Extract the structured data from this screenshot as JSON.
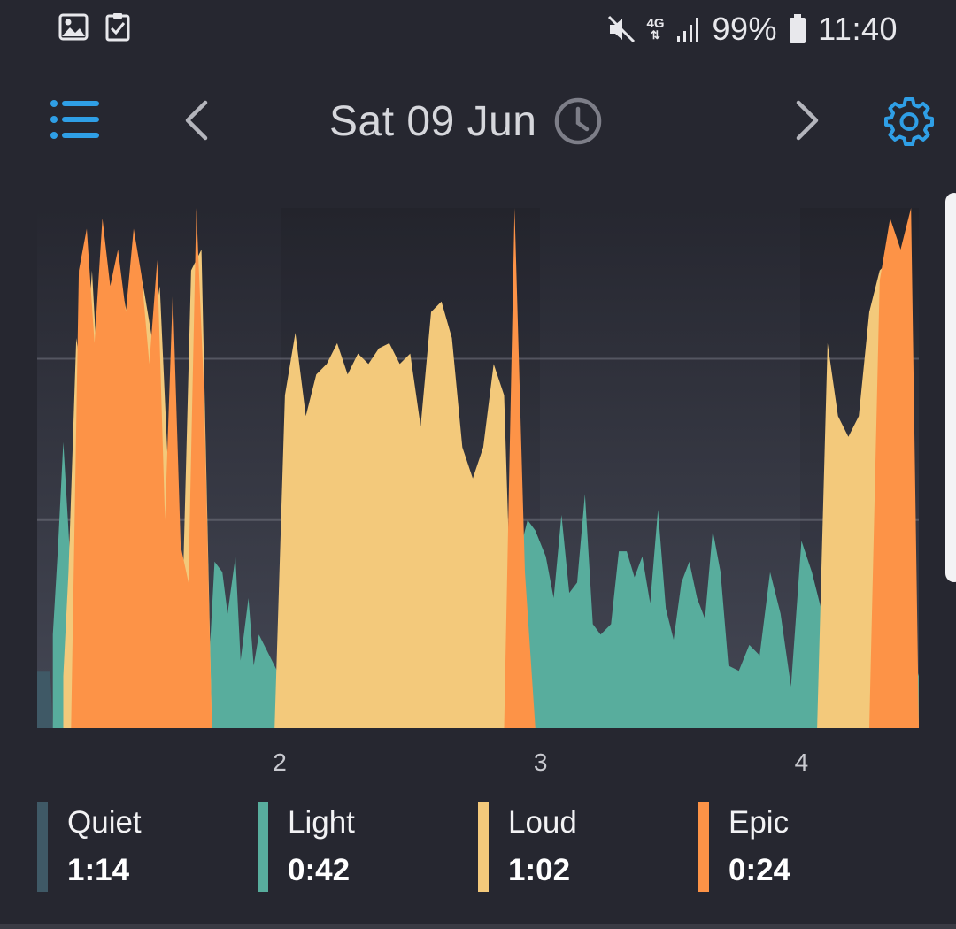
{
  "status_bar": {
    "icons_left": [
      "image-notification-icon",
      "checklist-notification-icon"
    ],
    "network_label": "4G",
    "battery_text": "99%",
    "time": "11:40"
  },
  "header": {
    "date": "Sat 09 Jun",
    "icons": {
      "menu": "menu-list-icon",
      "prev": "chevron-left-icon",
      "next": "chevron-right-icon",
      "clock": "clock-icon",
      "settings": "gear-icon"
    }
  },
  "colors": {
    "background": "#262730",
    "accent": "#2f9fe6",
    "quiet": "#3f5966",
    "light": "#58ad9d",
    "loud": "#f3c97b",
    "epic": "#fd9347"
  },
  "legend": [
    {
      "name": "Quiet",
      "value": "1:14",
      "color": "#3f5966"
    },
    {
      "name": "Light",
      "value": "0:42",
      "color": "#58ad9d"
    },
    {
      "name": "Loud",
      "value": "1:02",
      "color": "#f3c97b"
    },
    {
      "name": "Epic",
      "value": "0:24",
      "color": "#fd9347"
    }
  ],
  "chart_data": {
    "type": "area",
    "x_ticks": [
      "2",
      "3",
      "4"
    ],
    "x_tick_positions": [
      2,
      3,
      4
    ],
    "xlim": [
      1.07,
      4.45
    ],
    "ylim": [
      0,
      100
    ],
    "grid": true,
    "gridlines": [
      40,
      71
    ],
    "series": [
      {
        "name": "Quiet",
        "color": "#3f5966",
        "x": [
          1.07,
          1.12,
          1.13,
          1.22,
          1.3,
          1.4,
          1.5,
          1.6,
          1.7,
          1.8,
          1.9,
          2.0,
          2.1,
          2.2,
          2.3,
          2.4,
          2.5,
          2.6,
          2.7,
          2.8,
          2.9,
          3.0,
          3.1,
          3.2,
          3.3,
          3.4,
          3.5,
          3.6,
          3.7,
          3.8,
          3.9,
          3.93,
          4.0,
          4.1,
          4.2,
          4.3,
          4.45
        ],
        "y": [
          11,
          11,
          0,
          0,
          0,
          0,
          0,
          0,
          0,
          0,
          0,
          0,
          0,
          0,
          0,
          0,
          0,
          0,
          0,
          0,
          0,
          0,
          0,
          0,
          0,
          0,
          0,
          0,
          0,
          0,
          11,
          11,
          0,
          0,
          0,
          0,
          0
        ]
      },
      {
        "name": "Light",
        "color": "#58ad9d",
        "x": [
          1.13,
          1.15,
          1.17,
          1.19,
          1.21,
          1.25,
          1.32,
          1.4,
          1.48,
          1.56,
          1.64,
          1.72,
          1.75,
          1.78,
          1.8,
          1.83,
          1.85,
          1.88,
          1.9,
          1.92,
          1.95,
          2.0,
          2.1,
          2.2,
          2.3,
          2.4,
          2.5,
          2.6,
          2.7,
          2.78,
          2.8,
          2.82,
          2.85,
          2.88,
          2.92,
          2.95,
          2.98,
          3.02,
          3.05,
          3.08,
          3.11,
          3.14,
          3.17,
          3.2,
          3.23,
          3.27,
          3.3,
          3.33,
          3.36,
          3.39,
          3.42,
          3.45,
          3.48,
          3.51,
          3.54,
          3.57,
          3.6,
          3.63,
          3.66,
          3.69,
          3.72,
          3.76,
          3.8,
          3.84,
          3.88,
          3.92,
          3.96,
          4.0,
          4.04,
          4.08,
          4.12,
          4.16,
          4.2,
          4.24,
          4.28,
          4.32,
          4.36,
          4.4,
          4.45
        ],
        "y": [
          18,
          35,
          55,
          38,
          20,
          10,
          5,
          3,
          2,
          3,
          4,
          4,
          32,
          30,
          22,
          33,
          13,
          25,
          12,
          18,
          15,
          10,
          8,
          6,
          5,
          4,
          4,
          5,
          6,
          8,
          24,
          36,
          42,
          30,
          34,
          40,
          38,
          33,
          25,
          41,
          26,
          28,
          45,
          20,
          18,
          20,
          34,
          34,
          29,
          33,
          24,
          42,
          23,
          17,
          28,
          32,
          25,
          21,
          38,
          30,
          12,
          11,
          16,
          14,
          30,
          22,
          8,
          36,
          30,
          22,
          48,
          30,
          34,
          50,
          62,
          58,
          24,
          18,
          10
        ]
      },
      {
        "name": "Loud",
        "color": "#f3c97b",
        "x": [
          1.17,
          1.19,
          1.22,
          1.25,
          1.28,
          1.3,
          1.33,
          1.36,
          1.39,
          1.42,
          1.45,
          1.48,
          1.51,
          1.54,
          1.57,
          1.6,
          1.63,
          1.66,
          1.7,
          1.74,
          1.78,
          1.82,
          1.86,
          1.9,
          1.94,
          1.98,
          2.02,
          2.06,
          2.1,
          2.14,
          2.18,
          2.22,
          2.26,
          2.3,
          2.34,
          2.38,
          2.42,
          2.46,
          2.5,
          2.54,
          2.58,
          2.62,
          2.66,
          2.7,
          2.74,
          2.78,
          2.82,
          2.86,
          2.9,
          2.94,
          2.98,
          3.02,
          3.06,
          3.1,
          3.14,
          3.18,
          3.22,
          3.26,
          3.3,
          3.34,
          3.38,
          3.42,
          3.46,
          3.5,
          3.54,
          3.58,
          3.62,
          3.66,
          3.7,
          3.74,
          3.78,
          3.82,
          3.86,
          3.9,
          3.94,
          3.98,
          4.02,
          4.06,
          4.1,
          4.14,
          4.18,
          4.22,
          4.26,
          4.3,
          4.34,
          4.38,
          4.45
        ],
        "y": [
          10,
          30,
          75,
          64,
          88,
          70,
          90,
          80,
          86,
          78,
          92,
          84,
          75,
          85,
          52,
          40,
          30,
          88,
          92,
          0,
          0,
          0,
          0,
          0,
          0,
          0,
          64,
          76,
          60,
          68,
          70,
          74,
          68,
          72,
          70,
          73,
          74,
          70,
          72,
          58,
          80,
          82,
          75,
          54,
          48,
          54,
          70,
          64,
          0,
          0,
          0,
          0,
          0,
          0,
          0,
          0,
          0,
          0,
          0,
          0,
          0,
          0,
          0,
          0,
          0,
          0,
          0,
          0,
          0,
          0,
          0,
          0,
          0,
          0,
          0,
          0,
          0,
          0,
          74,
          60,
          56,
          60,
          80,
          88,
          90,
          92,
          0
        ]
      },
      {
        "name": "Epic",
        "color": "#fd9347",
        "x": [
          1.2,
          1.23,
          1.26,
          1.29,
          1.32,
          1.35,
          1.38,
          1.41,
          1.44,
          1.47,
          1.5,
          1.53,
          1.56,
          1.59,
          1.62,
          1.65,
          1.68,
          1.71,
          1.74,
          1.78,
          1.82,
          1.86,
          1.9,
          1.94,
          1.98,
          2.02,
          2.06,
          2.1,
          2.14,
          2.18,
          2.22,
          2.26,
          2.3,
          2.34,
          2.38,
          2.42,
          2.46,
          2.5,
          2.54,
          2.58,
          2.62,
          2.66,
          2.7,
          2.74,
          2.78,
          2.82,
          2.86,
          2.9,
          2.94,
          2.98,
          3.02,
          3.06,
          3.1,
          3.14,
          3.18,
          3.22,
          3.26,
          3.3,
          3.34,
          3.38,
          3.42,
          3.46,
          3.5,
          3.54,
          3.58,
          3.62,
          3.66,
          3.7,
          3.74,
          3.78,
          3.82,
          3.86,
          3.9,
          3.94,
          3.98,
          4.02,
          4.06,
          4.1,
          4.14,
          4.18,
          4.22,
          4.26,
          4.3,
          4.34,
          4.38,
          4.42,
          4.45
        ],
        "y": [
          0,
          88,
          96,
          74,
          98,
          85,
          92,
          80,
          96,
          87,
          70,
          90,
          40,
          84,
          35,
          28,
          100,
          64,
          0,
          0,
          0,
          0,
          0,
          0,
          0,
          0,
          0,
          0,
          0,
          0,
          0,
          0,
          0,
          0,
          0,
          0,
          0,
          0,
          0,
          0,
          0,
          0,
          0,
          0,
          0,
          0,
          0,
          100,
          30,
          0,
          0,
          0,
          0,
          0,
          0,
          0,
          0,
          0,
          0,
          0,
          0,
          0,
          0,
          0,
          0,
          0,
          0,
          0,
          0,
          0,
          0,
          0,
          0,
          0,
          0,
          0,
          0,
          0,
          0,
          0,
          0,
          0,
          86,
          98,
          92,
          100,
          0
        ]
      }
    ]
  }
}
